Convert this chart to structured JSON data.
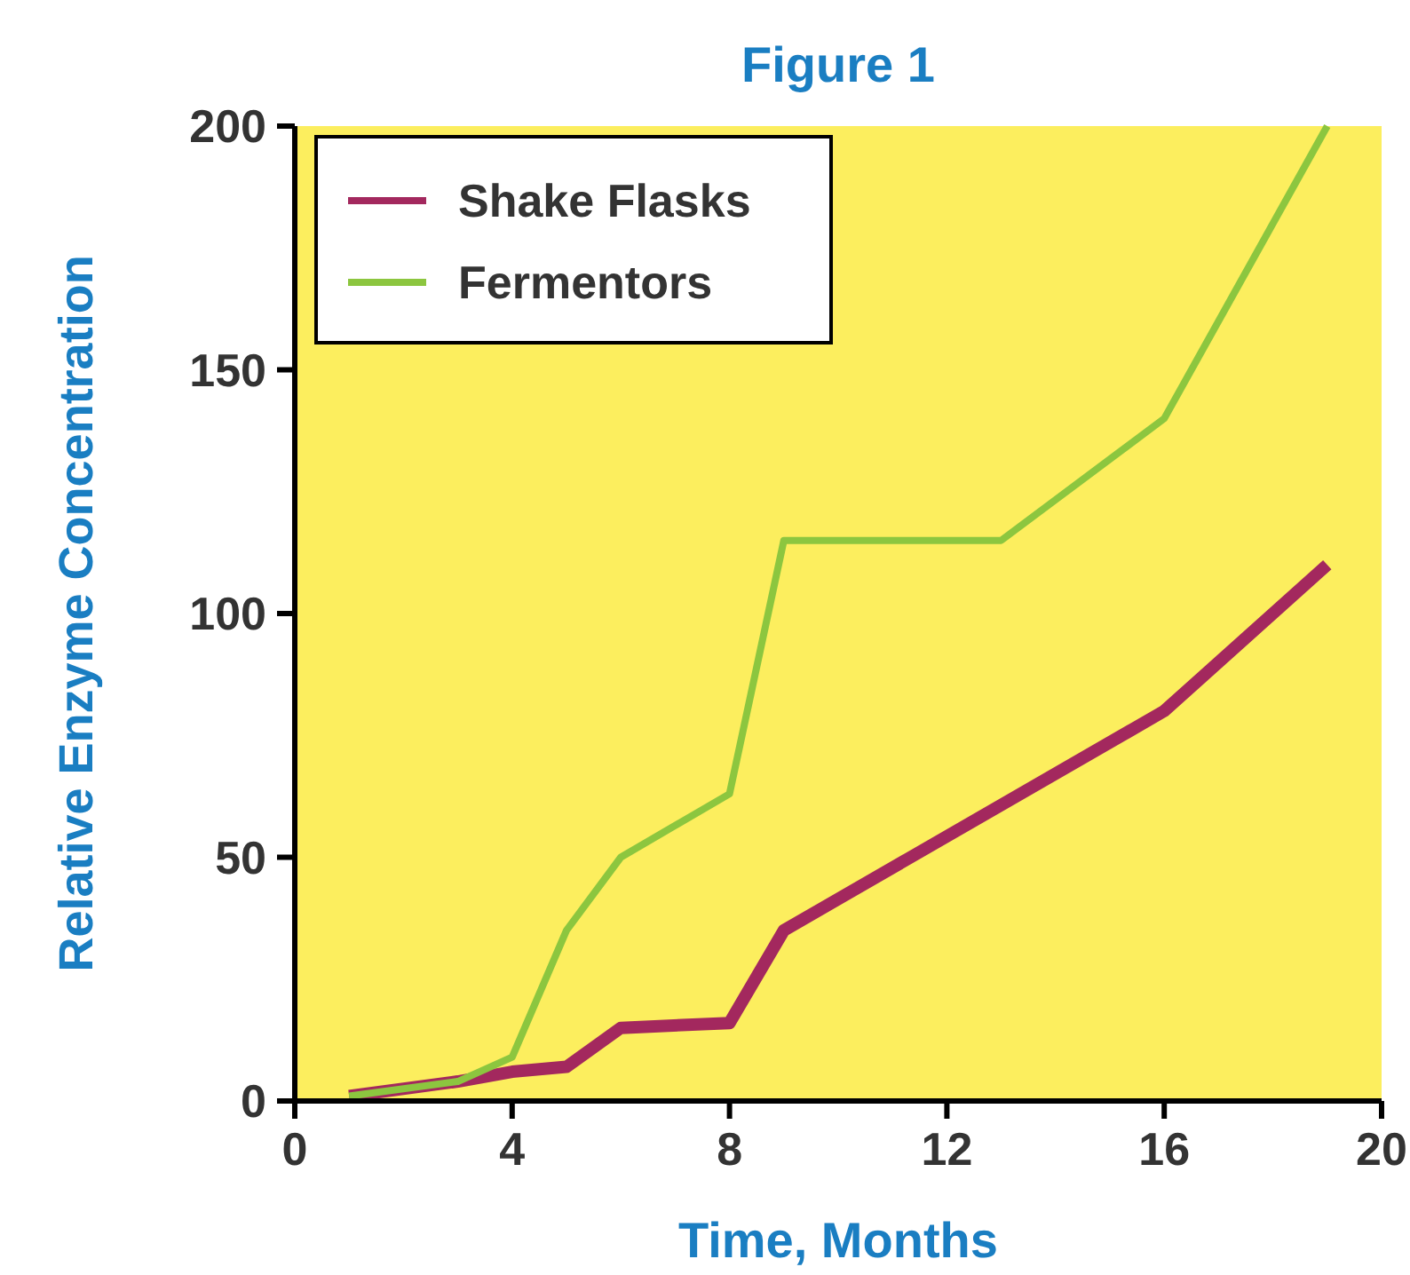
{
  "chart_data": {
    "type": "line",
    "title": "Figure 1",
    "xlabel": "Time, Months",
    "ylabel": "Relative Enzyme Concentration",
    "xlim": [
      0,
      20
    ],
    "xticks": [
      0,
      4,
      8,
      12,
      16,
      20
    ],
    "ylim": [
      0,
      200
    ],
    "yticks": [
      0,
      50,
      100,
      150,
      200
    ],
    "legend": "top left",
    "grid": false,
    "marker": "none",
    "line_style": "solid",
    "series": [
      {
        "name": "Shake Flasks",
        "color": "#a3285e",
        "x": [
          1,
          3,
          4,
          5,
          6,
          8,
          9,
          16,
          19
        ],
        "values": [
          1,
          4,
          6,
          7,
          15,
          16,
          35,
          80,
          110
        ]
      },
      {
        "name": "Fermentors",
        "color": "#8cc63f",
        "x": [
          1,
          3,
          4,
          5,
          6,
          8,
          9,
          13,
          16,
          19
        ],
        "values": [
          1,
          4,
          9,
          35,
          50,
          63,
          115,
          115,
          140,
          200
        ]
      }
    ]
  }
}
